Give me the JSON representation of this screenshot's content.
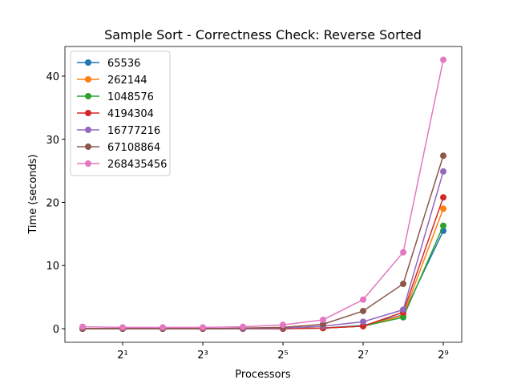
{
  "chart_data": {
    "type": "line",
    "title": "Sample Sort - Correctness Check: Reverse Sorted",
    "x_label": "Processors",
    "y_label": "Time (seconds)",
    "xscale": "log",
    "xscale_base": 2,
    "x": [
      1,
      2,
      4,
      8,
      16,
      32,
      64,
      128,
      256,
      512
    ],
    "xlim": [
      0.737,
      704
    ],
    "ylim": [
      -2.16,
      44.7
    ],
    "xticks": [
      {
        "value": 2,
        "label": "2¹"
      },
      {
        "value": 8,
        "label": "2³"
      },
      {
        "value": 32,
        "label": "2⁵"
      },
      {
        "value": 128,
        "label": "2⁷"
      },
      {
        "value": 512,
        "label": "2⁹"
      }
    ],
    "yticks": [
      0,
      10,
      20,
      30,
      40
    ],
    "legend": "upper left",
    "series": [
      {
        "name": "65536",
        "color": "#1f77b4",
        "values": [
          0,
          0,
          0,
          0,
          0,
          0,
          0.1,
          0.5,
          2.2,
          15.5
        ]
      },
      {
        "name": "262144",
        "color": "#ff7f0e",
        "values": [
          0,
          0,
          0,
          0,
          0,
          0,
          0.1,
          0.4,
          2.1,
          19.0
        ]
      },
      {
        "name": "1048576",
        "color": "#2ca02c",
        "values": [
          0,
          0,
          0,
          0,
          0,
          0,
          0.1,
          0.4,
          1.8,
          16.3
        ]
      },
      {
        "name": "4194304",
        "color": "#d62728",
        "values": [
          0,
          0,
          0,
          0,
          0,
          0,
          0.1,
          0.4,
          2.6,
          20.8
        ]
      },
      {
        "name": "16777216",
        "color": "#9467bd",
        "values": [
          0,
          0,
          0,
          0,
          0,
          0.1,
          0.4,
          1.1,
          3.0,
          24.9
        ]
      },
      {
        "name": "67108864",
        "color": "#8c564b",
        "values": [
          0,
          0,
          0,
          0,
          0.1,
          0.2,
          0.7,
          2.8,
          7.1,
          27.4
        ]
      },
      {
        "name": "268435456",
        "color": "#e377c2",
        "values": [
          0.3,
          0.2,
          0.2,
          0.2,
          0.3,
          0.6,
          1.4,
          4.6,
          12.1,
          42.6
        ]
      }
    ]
  }
}
